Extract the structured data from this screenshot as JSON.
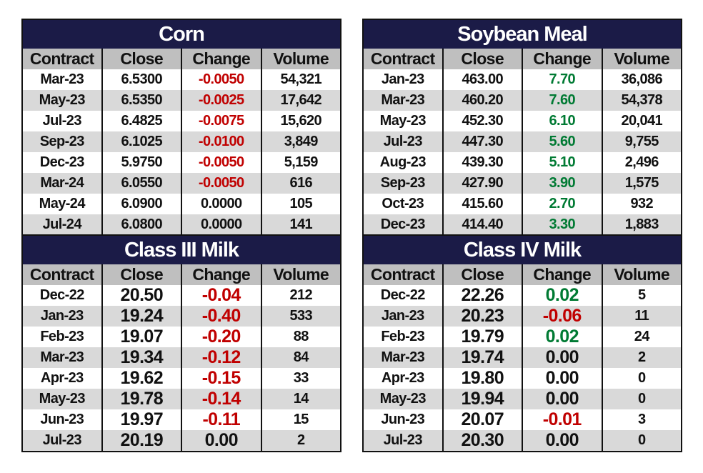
{
  "colors": {
    "title_bg": "#1b1b47",
    "header_bg": "#bfbfbf",
    "alt_row": "#d9d9d9",
    "negative": "#c00000",
    "positive": "#007a33"
  },
  "tables": [
    {
      "title": "Corn",
      "headers": [
        "Contract",
        "Close",
        "Change",
        "Volume"
      ],
      "rows": [
        [
          "Mar-23",
          "6.5300",
          "-0.0050",
          "54,321"
        ],
        [
          "May-23",
          "6.5350",
          "-0.0025",
          "17,642"
        ],
        [
          "Jul-23",
          "6.4825",
          "-0.0075",
          "15,620"
        ],
        [
          "Sep-23",
          "6.1025",
          "-0.0100",
          "3,849"
        ],
        [
          "Dec-23",
          "5.9750",
          "-0.0050",
          "5,159"
        ],
        [
          "Mar-24",
          "6.0550",
          "-0.0050",
          "616"
        ],
        [
          "May-24",
          "6.0900",
          "0.0000",
          "105"
        ],
        [
          "Jul-24",
          "6.0800",
          "0.0000",
          "141"
        ]
      ]
    },
    {
      "title": "Soybean Meal",
      "headers": [
        "Contract",
        "Close",
        "Change",
        "Volume"
      ],
      "rows": [
        [
          "Jan-23",
          "463.00",
          "7.70",
          "36,086"
        ],
        [
          "Mar-23",
          "460.20",
          "7.60",
          "54,378"
        ],
        [
          "May-23",
          "452.30",
          "6.10",
          "20,041"
        ],
        [
          "Jul-23",
          "447.30",
          "5.60",
          "9,755"
        ],
        [
          "Aug-23",
          "439.30",
          "5.10",
          "2,496"
        ],
        [
          "Sep-23",
          "427.90",
          "3.90",
          "1,575"
        ],
        [
          "Oct-23",
          "415.60",
          "2.70",
          "932"
        ],
        [
          "Dec-23",
          "414.40",
          "3.30",
          "1,883"
        ]
      ]
    },
    {
      "title": "Class III Milk",
      "headers": [
        "Contract",
        "Close",
        "Change",
        "Volume"
      ],
      "rows": [
        [
          "Dec-22",
          "20.50",
          "-0.04",
          "212"
        ],
        [
          "Jan-23",
          "19.24",
          "-0.40",
          "533"
        ],
        [
          "Feb-23",
          "19.07",
          "-0.20",
          "88"
        ],
        [
          "Mar-23",
          "19.34",
          "-0.12",
          "84"
        ],
        [
          "Apr-23",
          "19.62",
          "-0.15",
          "33"
        ],
        [
          "May-23",
          "19.78",
          "-0.14",
          "14"
        ],
        [
          "Jun-23",
          "19.97",
          "-0.11",
          "15"
        ],
        [
          "Jul-23",
          "20.19",
          "0.00",
          "2"
        ]
      ]
    },
    {
      "title": "Class IV Milk",
      "headers": [
        "Contract",
        "Close",
        "Change",
        "Volume"
      ],
      "rows": [
        [
          "Dec-22",
          "22.26",
          "0.02",
          "5"
        ],
        [
          "Jan-23",
          "20.23",
          "-0.06",
          "11"
        ],
        [
          "Feb-23",
          "19.79",
          "0.02",
          "24"
        ],
        [
          "Mar-23",
          "19.74",
          "0.00",
          "2"
        ],
        [
          "Apr-23",
          "19.80",
          "0.00",
          "0"
        ],
        [
          "May-23",
          "19.94",
          "0.00",
          "0"
        ],
        [
          "Jun-23",
          "20.07",
          "-0.01",
          "3"
        ],
        [
          "Jul-23",
          "20.30",
          "0.00",
          "0"
        ]
      ]
    }
  ]
}
